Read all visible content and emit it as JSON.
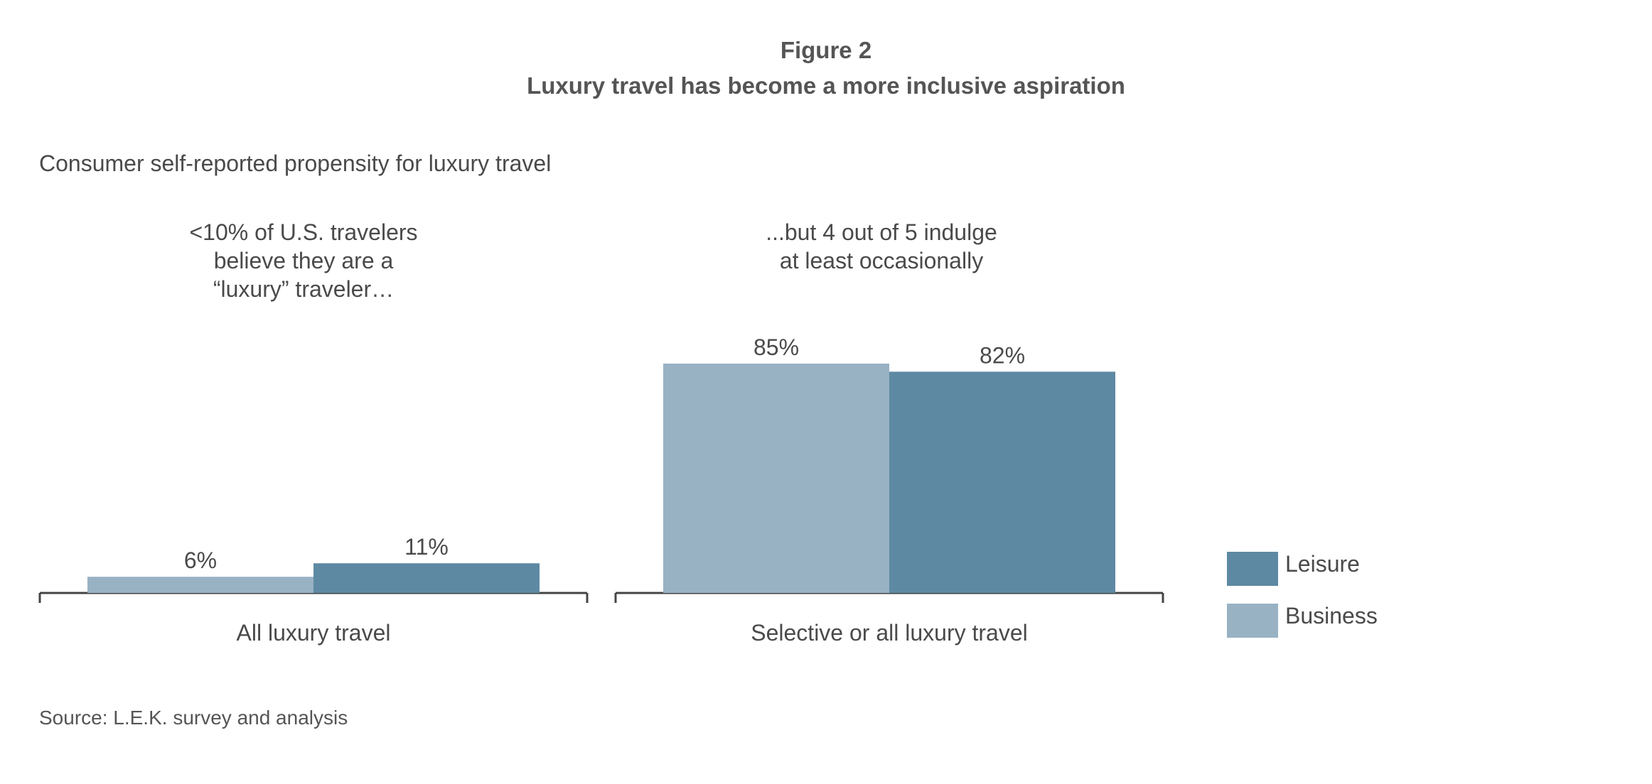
{
  "figure_label": "Figure 2",
  "title": "Luxury travel has become a more inclusive aspiration",
  "subtitle": "Consumer self-reported propensity for luxury travel",
  "source": "Source: L.E.K. survey and analysis",
  "colors": {
    "business": "#98b2c4",
    "leisure": "#5e89a3",
    "axis": "#444444",
    "text": "#4a4a4a"
  },
  "chart_data": {
    "type": "bar",
    "categories": [
      "All luxury travel",
      "Selective or all luxury travel"
    ],
    "series": [
      {
        "name": "Business",
        "values": [
          6,
          85
        ],
        "labels": [
          "6%",
          "85%"
        ]
      },
      {
        "name": "Leisure",
        "values": [
          11,
          82
        ],
        "labels": [
          "11%",
          "82%"
        ]
      }
    ],
    "annotations": [
      "<10% of U.S. travelers believe they are a “luxury” traveler…",
      "...but 4 out of 5 indulge at least occasionally"
    ],
    "annotation_lines": [
      [
        "<10% of U.S. travelers",
        "believe they are a",
        "“luxury” traveler…"
      ],
      [
        "...but 4 out of 5 indulge",
        "at least occasionally"
      ]
    ],
    "legend": [
      "Leisure",
      "Business"
    ],
    "legend_position": "right",
    "ylim": [
      0,
      100
    ],
    "grid": false,
    "xlabel": "",
    "ylabel": ""
  }
}
